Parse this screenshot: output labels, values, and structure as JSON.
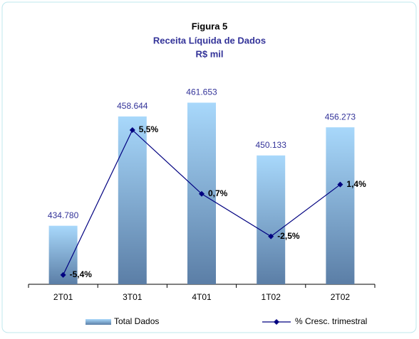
{
  "chart_data": {
    "type": "bar-line",
    "title": "Figura 5",
    "subtitle": "Receita Líquida de Dados",
    "unit": "R$ mil",
    "categories": [
      "2T01",
      "3T01",
      "4T01",
      "1T02",
      "2T02"
    ],
    "series": [
      {
        "name": "Total Dados",
        "type": "bar",
        "color": "#7fa6cf",
        "values": [
          434.78,
          458.644,
          461.653,
          450.133,
          456.273
        ],
        "value_labels": [
          "434.780",
          "458.644",
          "461.653",
          "450.133",
          "456.273"
        ]
      },
      {
        "name": "% Cresc. trimestral",
        "type": "line",
        "axis": "y2",
        "color": "#000080",
        "values": [
          -5.4,
          5.5,
          0.7,
          -2.5,
          1.4
        ],
        "value_labels": [
          "-5,4%",
          "5,5%",
          "0,7%",
          "-2,5%",
          "1,4%"
        ]
      }
    ],
    "ylim": [
      422,
      467
    ],
    "y2lim": [
      -6.1,
      9.4
    ],
    "legend": "bottom"
  }
}
